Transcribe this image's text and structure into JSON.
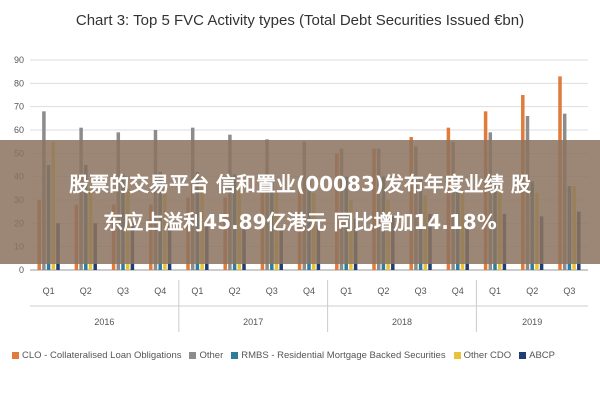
{
  "chart_data": {
    "type": "bar",
    "title": "Chart 3: Top 5 FVC Activity types (Total Debt Securities Issued €bn)",
    "ylim": [
      0,
      90
    ],
    "yticks": [
      0,
      10,
      20,
      30,
      40,
      50,
      60,
      70,
      80,
      90
    ],
    "grid": true,
    "legend_position": "bottom",
    "categories": [
      "Q1",
      "Q2",
      "Q3",
      "Q4",
      "Q1",
      "Q2",
      "Q3",
      "Q4",
      "Q1",
      "Q2",
      "Q3",
      "Q4",
      "Q1",
      "Q2",
      "Q3"
    ],
    "year_groups": [
      {
        "label": "2016",
        "count": 4
      },
      {
        "label": "2017",
        "count": 4
      },
      {
        "label": "2018",
        "count": 4
      },
      {
        "label": "2019",
        "count": 3
      }
    ],
    "series": [
      {
        "name": "CLO - Collateralised Loan Obligations",
        "color": "#e07b39",
        "values": [
          30,
          28,
          28,
          28,
          31,
          31,
          33,
          38,
          50,
          52,
          57,
          61,
          68,
          75,
          83
        ]
      },
      {
        "name": "Other",
        "color": "#8c8c8c",
        "values": [
          68,
          61,
          59,
          60,
          61,
          58,
          56,
          55,
          52,
          52,
          53,
          55,
          59,
          66,
          67
        ]
      },
      {
        "name": "RMBS - Residential Mortgage Backed Securities",
        "color": "#2e7d9a",
        "values": [
          45,
          45,
          41,
          42,
          42,
          41,
          40,
          40,
          40,
          40,
          40,
          40,
          40,
          38,
          36
        ]
      },
      {
        "name": "Other CDO",
        "color": "#e8c33a",
        "values": [
          55,
          35,
          35,
          35,
          36,
          35,
          33,
          33,
          30,
          30,
          32,
          33,
          33,
          33,
          36
        ]
      },
      {
        "name": "ABCP",
        "color": "#1f3f73",
        "values": [
          20,
          20,
          20,
          19,
          19,
          19,
          18,
          19,
          22,
          23,
          24,
          24,
          24,
          23,
          25
        ]
      }
    ]
  },
  "overlay": {
    "line1": "股票的交易平台 信和置业(00083)发布年度业绩 股",
    "line2": "东应占溢利45.89亿港元 同比增加14.18%"
  }
}
